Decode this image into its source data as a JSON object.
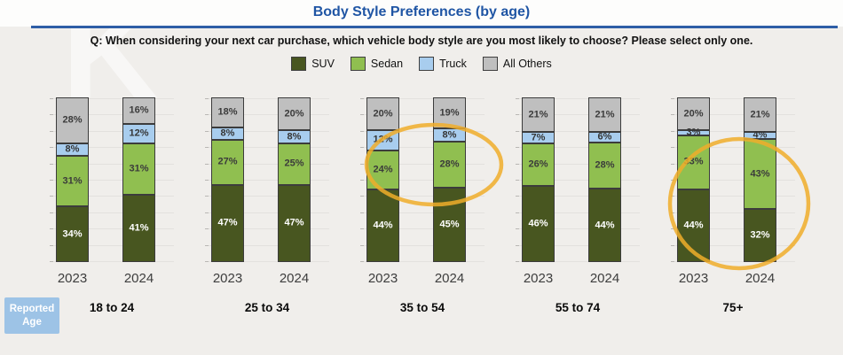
{
  "header": {
    "title": "Body Style Preferences (by age)",
    "question": "Q: When considering your next car purchase, which vehicle body style are you most likely to choose? Please select only one."
  },
  "legend": {
    "items": [
      {
        "label": "SUV",
        "color": "#485620"
      },
      {
        "label": "Sedan",
        "color": "#90bf50"
      },
      {
        "label": "Truck",
        "color": "#a8cdee"
      },
      {
        "label": "All Others",
        "color": "#bfbfbf"
      }
    ]
  },
  "reported_age": {
    "label": "Reported Age"
  },
  "chart_data": {
    "type": "bar",
    "variant": "100-percent-stacked-column",
    "title": "Body Style Preferences (by age)",
    "series_order": [
      "SUV",
      "Sedan",
      "Truck",
      "All Others"
    ],
    "series_colors": {
      "SUV": "#485620",
      "Sedan": "#90bf50",
      "Truck": "#a8cdee",
      "All Others": "#bfbfbf"
    },
    "label_text_colors": {
      "SUV": "#ffffff",
      "Sedan": "#3b3b3b",
      "Truck": "#353535",
      "All Others": "#3b3b3b"
    },
    "y_axis": {
      "min": 0,
      "max": 100,
      "gridline_step": 10,
      "gridlines_visible": true,
      "tick_labels_visible": false
    },
    "x_years": [
      "2023",
      "2024"
    ],
    "groups": [
      {
        "age_label": "18 to 24",
        "bars": [
          {
            "year": "2023",
            "values": {
              "SUV": 34,
              "Sedan": 31,
              "Truck": 8,
              "All Others": 28
            }
          },
          {
            "year": "2024",
            "values": {
              "SUV": 41,
              "Sedan": 31,
              "Truck": 12,
              "All Others": 16
            }
          }
        ]
      },
      {
        "age_label": "25 to 34",
        "bars": [
          {
            "year": "2023",
            "values": {
              "SUV": 47,
              "Sedan": 27,
              "Truck": 8,
              "All Others": 18
            }
          },
          {
            "year": "2024",
            "values": {
              "SUV": 47,
              "Sedan": 25,
              "Truck": 8,
              "All Others": 20
            }
          }
        ]
      },
      {
        "age_label": "35 to 54",
        "bars": [
          {
            "year": "2023",
            "values": {
              "SUV": 44,
              "Sedan": 24,
              "Truck": 12,
              "All Others": 20
            }
          },
          {
            "year": "2024",
            "values": {
              "SUV": 45,
              "Sedan": 28,
              "Truck": 8,
              "All Others": 19
            }
          }
        ]
      },
      {
        "age_label": "55 to 74",
        "bars": [
          {
            "year": "2023",
            "values": {
              "SUV": 46,
              "Sedan": 26,
              "Truck": 7,
              "All Others": 21
            }
          },
          {
            "year": "2024",
            "values": {
              "SUV": 44,
              "Sedan": 28,
              "Truck": 6,
              "All Others": 21
            }
          }
        ]
      },
      {
        "age_label": "75+",
        "bars": [
          {
            "year": "2023",
            "values": {
              "SUV": 44,
              "Sedan": 33,
              "Truck": 3,
              "All Others": 20
            }
          },
          {
            "year": "2024",
            "values": {
              "SUV": 32,
              "Sedan": 43,
              "Truck": 4,
              "All Others": 21
            }
          }
        ]
      }
    ],
    "annotations": [
      {
        "shape": "ellipse",
        "color": "#f0ad2a",
        "group": "35 to 54",
        "highlights": "Sedan and Truck segments (2023 vs 2024)"
      },
      {
        "shape": "ellipse",
        "color": "#f0ad2a",
        "group": "75+",
        "highlights": "SUV and Sedan segments (2023 vs 2024)"
      }
    ]
  }
}
